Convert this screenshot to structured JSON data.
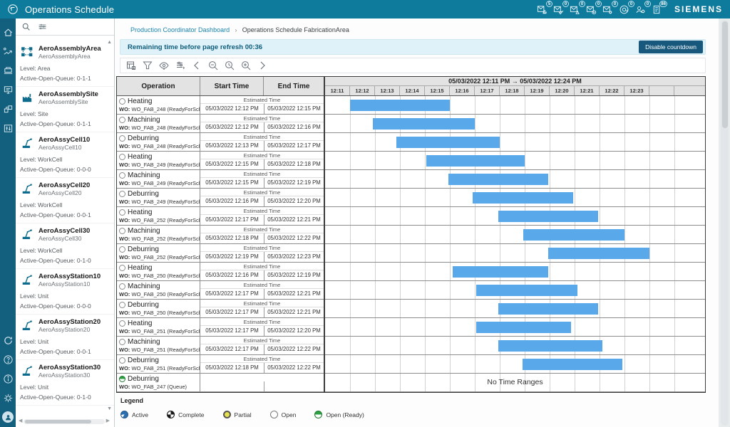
{
  "app": {
    "title": "Operations Schedule",
    "brand": "SIEMENS"
  },
  "topbar": {
    "notifications": [
      {
        "icon": "mail-chart",
        "badge": "5"
      },
      {
        "icon": "mail-send",
        "badge": "0"
      },
      {
        "icon": "mail-alert",
        "badge": "0"
      },
      {
        "icon": "mail-check",
        "badge": "0"
      },
      {
        "icon": "mail-gear",
        "badge": "0"
      },
      {
        "icon": "at",
        "badge": "0"
      },
      {
        "icon": "users-gear",
        "badge": "0"
      },
      {
        "icon": "doc-badge",
        "badge": "86"
      }
    ]
  },
  "breadcrumb": {
    "link": "Production Coordinator Dashboard",
    "separator": "›",
    "current": "Operations Schedule FabricationArea"
  },
  "refresh_bar": {
    "message": "Remaining time before page refresh 00:36",
    "button_label": "Disable countdown"
  },
  "sidebar": {
    "items": [
      {
        "icon": "area",
        "name": "AeroAssemblyArea",
        "subname": "AeroAssemblyArea",
        "level": "Level: Area",
        "queue": "Active-Open-Queue: 0-1-1"
      },
      {
        "icon": "site",
        "name": "AeroAssemblySite",
        "subname": "AeroAssemblySite",
        "level": "Level: Site",
        "queue": "Active-Open-Queue: 0-1-1"
      },
      {
        "icon": "robot",
        "name": "AeroAssyCell10",
        "subname": "AeroAssyCell10",
        "level": "Level: WorkCell",
        "queue": "Active-Open-Queue: 0-0-0"
      },
      {
        "icon": "robot",
        "name": "AeroAssyCell20",
        "subname": "AeroAssyCell20",
        "level": "Level: WorkCell",
        "queue": "Active-Open-Queue: 0-0-1"
      },
      {
        "icon": "robot",
        "name": "AeroAssyCell30",
        "subname": "AeroAssyCell30",
        "level": "Level: WorkCell",
        "queue": "Active-Open-Queue: 0-1-0"
      },
      {
        "icon": "robot",
        "name": "AeroAssyStation10",
        "subname": "AeroAssyStation10",
        "level": "Level: Unit",
        "queue": "Active-Open-Queue: 0-0-0"
      },
      {
        "icon": "robot",
        "name": "AeroAssyStation20",
        "subname": "AeroAssyStation20",
        "level": "Level: Unit",
        "queue": "Active-Open-Queue: 0-0-1"
      },
      {
        "icon": "robot",
        "name": "AeroAssyStation30",
        "subname": "AeroAssyStation30",
        "level": "Level: Unit",
        "queue": "Active-Open-Queue: 0-1-0"
      }
    ]
  },
  "gantt": {
    "headers": {
      "operation": "Operation",
      "start": "Start Time",
      "end": "End Time"
    },
    "estimated_label": "Estimated Time",
    "range_label": "05/03/2022 12:11 PM → 05/03/2022 12:24 PM",
    "ticks": [
      "12:11",
      "12:12",
      "12:13",
      "12:14",
      "12:15",
      "12:16",
      "12:17",
      "12:18",
      "12:19",
      "12:20",
      "12:21",
      "12:22",
      "12:23"
    ],
    "no_ranges_label": "No Time Ranges",
    "rows": [
      {
        "operation": "Heating",
        "wo_label": "WO:",
        "wo": "WO_FAB_248 (ReadyForScheduling)",
        "start": "05/03/2022 12:12 PM",
        "end": "05/03/2022 12:15 PM",
        "status": "open",
        "bar": [
          1.0,
          5.0
        ]
      },
      {
        "operation": "Machining",
        "wo_label": "WO:",
        "wo": "WO_FAB_248 (ReadyForScheduling)",
        "start": "05/03/2022 12:12 PM",
        "end": "05/03/2022 12:16 PM",
        "status": "open",
        "bar": [
          1.9,
          6.0
        ]
      },
      {
        "operation": "Deburring",
        "wo_label": "WO:",
        "wo": "WO_FAB_248 (ReadyForScheduling)",
        "start": "05/03/2022 12:13 PM",
        "end": "05/03/2022 12:17 PM",
        "status": "open",
        "bar": [
          2.85,
          7.0
        ]
      },
      {
        "operation": "Heating",
        "wo_label": "WO:",
        "wo": "WO_FAB_249 (ReadyForScheduling)",
        "start": "05/03/2022 12:15 PM",
        "end": "05/03/2022 12:18 PM",
        "status": "open",
        "bar": [
          4.05,
          8.0
        ]
      },
      {
        "operation": "Machining",
        "wo_label": "WO:",
        "wo": "WO_FAB_249 (ReadyForScheduling)",
        "start": "05/03/2022 12:15 PM",
        "end": "05/03/2022 12:19 PM",
        "status": "open",
        "bar": [
          4.95,
          8.95
        ]
      },
      {
        "operation": "Deburring",
        "wo_label": "WO:",
        "wo": "WO_FAB_249 (ReadyForScheduling)",
        "start": "05/03/2022 12:16 PM",
        "end": "05/03/2022 12:20 PM",
        "status": "open",
        "bar": [
          5.9,
          9.95
        ]
      },
      {
        "operation": "Heating",
        "wo_label": "WO:",
        "wo": "WO_FAB_252 (ReadyForScheduling)",
        "start": "05/03/2022 12:17 PM",
        "end": "05/03/2022 12:21 PM",
        "status": "open",
        "bar": [
          6.95,
          10.95
        ]
      },
      {
        "operation": "Machining",
        "wo_label": "WO:",
        "wo": "WO_FAB_252 (ReadyForScheduling)",
        "start": "05/03/2022 12:18 PM",
        "end": "05/03/2022 12:22 PM",
        "status": "open",
        "bar": [
          7.95,
          12.0
        ]
      },
      {
        "operation": "Deburring",
        "wo_label": "WO:",
        "wo": "WO_FAB_252 (ReadyForScheduling)",
        "start": "05/03/2022 12:19 PM",
        "end": "05/03/2022 12:23 PM",
        "status": "open",
        "bar": [
          8.95,
          13.0
        ]
      },
      {
        "operation": "Heating",
        "wo_label": "WO:",
        "wo": "WO_FAB_250 (ReadyForScheduling)",
        "start": "05/03/2022 12:16 PM",
        "end": "05/03/2022 12:19 PM",
        "status": "open",
        "bar": [
          5.1,
          8.95
        ]
      },
      {
        "operation": "Machining",
        "wo_label": "WO:",
        "wo": "WO_FAB_250 (ReadyForScheduling)",
        "start": "05/03/2022 12:17 PM",
        "end": "05/03/2022 12:21 PM",
        "status": "open",
        "bar": [
          6.05,
          10.1
        ]
      },
      {
        "operation": "Deburring",
        "wo_label": "WO:",
        "wo": "WO_FAB_250 (ReadyForScheduling)",
        "start": "05/03/2022 12:17 PM",
        "end": "05/03/2022 12:21 PM",
        "status": "open",
        "bar": [
          6.95,
          10.95
        ]
      },
      {
        "operation": "Heating",
        "wo_label": "WO:",
        "wo": "WO_FAB_251 (ReadyForScheduling)",
        "start": "05/03/2022 12:17 PM",
        "end": "05/03/2022 12:20 PM",
        "status": "open",
        "bar": [
          6.05,
          9.85
        ]
      },
      {
        "operation": "Machining",
        "wo_label": "WO:",
        "wo": "WO_FAB_251 (ReadyForScheduling)",
        "start": "05/03/2022 12:17 PM",
        "end": "05/03/2022 12:22 PM",
        "status": "open",
        "bar": [
          6.95,
          11.1
        ]
      },
      {
        "operation": "Deburring",
        "wo_label": "WO:",
        "wo": "WO_FAB_251 (ReadyForScheduling)",
        "start": "05/03/2022 12:18 PM",
        "end": "05/03/2022 12:22 PM",
        "status": "open",
        "bar": [
          7.9,
          11.9
        ]
      },
      {
        "operation": "Deburring",
        "wo_label": "WO:",
        "wo": "WO_FAB_247 (Queue)",
        "start": "",
        "end": "",
        "status": "ready",
        "bar": null
      }
    ]
  },
  "legend": {
    "title": "Legend",
    "items": [
      {
        "label": "Active",
        "type": "active"
      },
      {
        "label": "Complete",
        "type": "complete"
      },
      {
        "label": "Partial",
        "type": "partial"
      },
      {
        "label": "Open",
        "type": "open"
      },
      {
        "label": "Open (Ready)",
        "type": "ready"
      }
    ]
  },
  "colors": {
    "topbar": "#0e7a9c",
    "rail": "#135f7e",
    "bar": "#58a8ea",
    "info_bg": "#e0f2f9",
    "button": "#17587c",
    "link": "#1b84ab"
  }
}
